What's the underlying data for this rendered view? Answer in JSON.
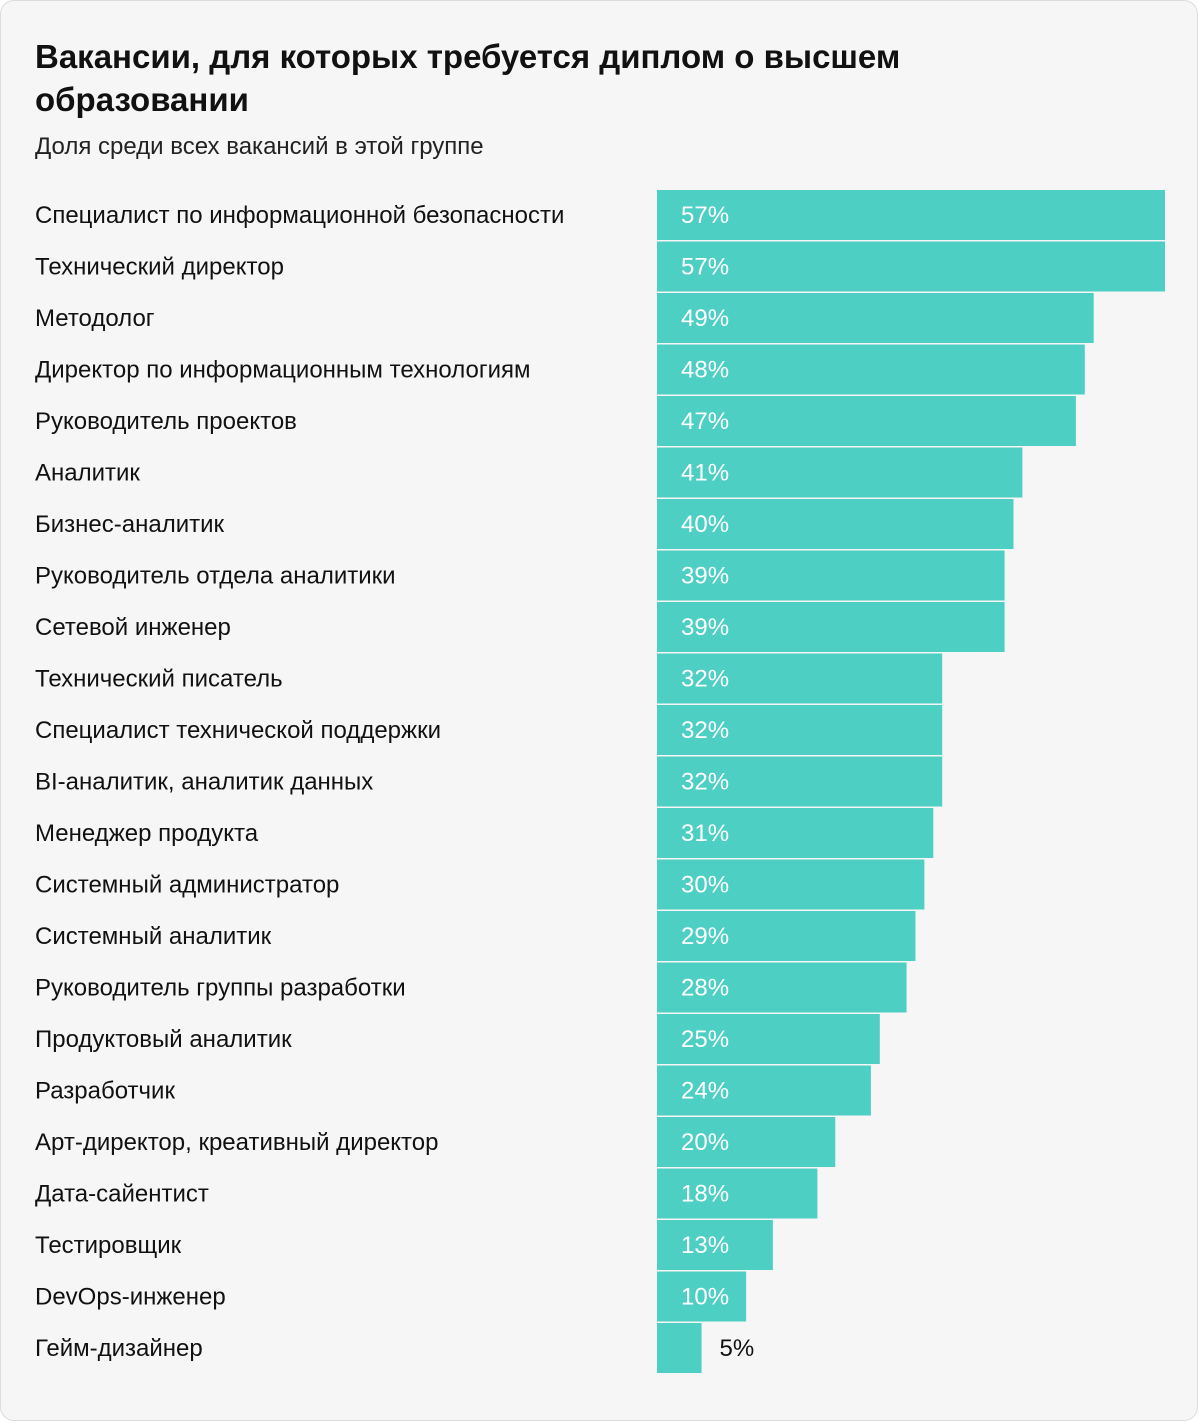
{
  "title": "Вакансии, для которых требуется диплом о высшем образовании",
  "subtitle": "Доля среди всех вакансий в этой группе",
  "colors": {
    "bar": "#4ecfc4",
    "label_inside": "#ffffff",
    "label_outside": "#111111",
    "background": "#f6f6f6"
  },
  "chart_data": {
    "type": "bar",
    "orientation": "horizontal",
    "categories": [
      "Специалист по информационной безопасности",
      "Технический директор",
      "Методолог",
      "Директор по информационным технологиям",
      "Руководитель проектов",
      "Аналитик",
      "Бизнес-аналитик",
      "Руководитель отдела аналитики",
      "Сетевой инженер",
      "Технический писатель",
      "Специалист технической поддержки",
      "BI-аналитик, аналитик данных",
      "Менеджер продукта",
      "Системный администратор",
      "Системный аналитик",
      "Руководитель группы разработки",
      "Продуктовый аналитик",
      "Разработчик",
      "Арт-директор, креативный директор",
      "Дата-сайентист",
      "Тестировщик",
      "DevOps-инженер",
      "Гейм-дизайнер"
    ],
    "values": [
      57,
      57,
      49,
      48,
      47,
      41,
      40,
      39,
      39,
      32,
      32,
      32,
      31,
      30,
      29,
      28,
      25,
      24,
      20,
      18,
      13,
      10,
      5
    ],
    "value_labels": [
      "57%",
      "57%",
      "49%",
      "48%",
      "47%",
      "41%",
      "40%",
      "39%",
      "39%",
      "32%",
      "32%",
      "32%",
      "31%",
      "30%",
      "29%",
      "28%",
      "25%",
      "24%",
      "20%",
      "18%",
      "13%",
      "10%",
      "5%"
    ],
    "unit": "%",
    "xlim": [
      0,
      57
    ],
    "grid": false,
    "legend": "none",
    "xlabel": "",
    "ylabel": ""
  }
}
